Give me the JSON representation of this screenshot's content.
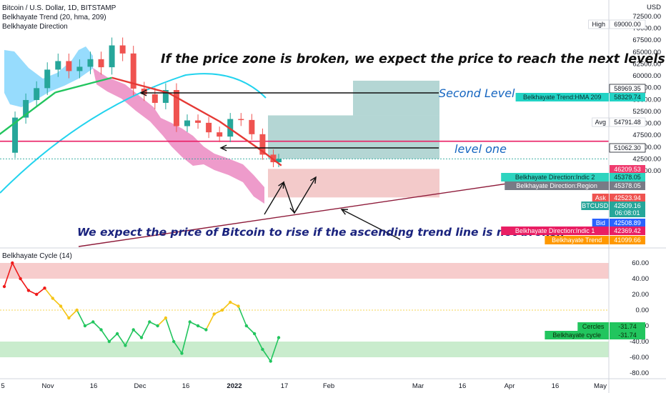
{
  "legend": {
    "symbol_line": "Bitcoin / U.S. Dollar, 1D, BITSTAMP",
    "trend_line": "Belkhayate Trend (20, hma, 209)",
    "direction_line": "Belkhayate Direction",
    "cycle_line": "Belkhayate Cycle  (14)"
  },
  "annotations": {
    "headline": "If the price zone is broken, we expect the price to reach the next levels",
    "second_level": "Second Level",
    "level_one": "level one",
    "bottom_note": "We expect the price of Bitcoin to rise if the ascending trend line is not broken"
  },
  "colors": {
    "up": "#26a69a",
    "down": "#ef5350",
    "trendline": "#8e1b3a",
    "resistance": "#e91e63",
    "arc": "#22d3ee",
    "cloud_pink": "#e879b9",
    "cloud_cyan": "#7dd3fc",
    "target_zone": "#a7cfcc",
    "stop_zone": "#f2c4c4",
    "cycle_yellow": "#f5c518",
    "cycle_green": "#22c55e",
    "cycle_red": "#ef1a1a",
    "band_red": "#f6c3c3",
    "band_green": "#bfe9c4"
  },
  "chart_data": [
    {
      "type": "line",
      "series": [
        {
          "name": "Bitcoin / U.S. Dollar",
          "x": [
            "2021-10-01",
            "2021-10-05",
            "2021-10-09",
            "2021-10-13",
            "2021-10-17",
            "2021-10-21",
            "2021-10-25",
            "2021-10-29",
            "2021-11-02",
            "2021-11-06",
            "2021-11-10",
            "2021-11-14",
            "2021-11-18",
            "2021-11-22",
            "2021-11-26",
            "2021-11-30",
            "2021-12-04",
            "2021-12-08",
            "2021-12-12",
            "2021-12-16",
            "2021-12-20",
            "2021-12-24",
            "2021-12-28",
            "2022-01-01",
            "2022-01-05",
            "2022-01-09",
            "2022-01-11"
          ],
          "values": [
            43800,
            51200,
            54900,
            57400,
            61300,
            63100,
            61000,
            61900,
            63500,
            61800,
            66400,
            64700,
            57300,
            56100,
            54300,
            57000,
            49400,
            50600,
            50100,
            48100,
            47200,
            50900,
            50700,
            47700,
            43400,
            41800,
            42509
          ]
        },
        {
          "name": "Belkhayate Trend",
          "x": [
            "2021-09-26",
            "2021-10-20",
            "2021-11-10",
            "2021-12-01",
            "2021-12-20",
            "2022-01-05",
            "2022-01-12"
          ],
          "values": [
            46300,
            56500,
            59600,
            56400,
            50400,
            44100,
            41099
          ]
        }
      ],
      "y_axis_labels": [
        "USD",
        "72500.00",
        "70000.00",
        "67500.00",
        "65000.00",
        "62500.00",
        "60000.00",
        "57500.00",
        "55000.00",
        "52500.00",
        "50000.00",
        "47500.00",
        "45000.00",
        "42500.00",
        "40000.00"
      ],
      "x_axis_labels": [
        "5",
        "Nov",
        "16",
        "Dec",
        "16",
        "2022",
        "17",
        "Feb",
        "Mar",
        "16",
        "Apr",
        "16",
        "May"
      ],
      "levels": {
        "second_level": 58969.35,
        "level_one": 51062.3,
        "resistance": 46209.53
      },
      "price_tags": [
        {
          "label": "High",
          "value": "69000.00",
          "bg": "#ffffff",
          "fg": "#131722",
          "border": "#d1d4dc"
        },
        {
          "label": "",
          "value": "58969.35",
          "bg": "#ffffff",
          "fg": "#131722",
          "border": "#131722"
        },
        {
          "label": "Belkhayate Trend:HMA 209",
          "value": "58329.74",
          "bg": "#22d3c5",
          "fg": "#0b2b2b",
          "border": ""
        },
        {
          "label": "Avg",
          "value": "54791.48",
          "bg": "#ffffff",
          "fg": "#131722",
          "border": "#d1d4dc"
        },
        {
          "label": "",
          "value": "51062.30",
          "bg": "#ffffff",
          "fg": "#131722",
          "border": "#131722"
        },
        {
          "label": "",
          "value": "46209.53",
          "bg": "#ef3b6e",
          "fg": "#ffffff",
          "border": ""
        },
        {
          "label": "Belkhayate Direction:Indic 2",
          "value": "45378.05",
          "bg": "#2dd4bf",
          "fg": "#0b2b2b",
          "border": ""
        },
        {
          "label": "Belkhayate Direction:Region",
          "value": "45378.05",
          "bg": "#787b86",
          "fg": "#ffffff",
          "border": ""
        },
        {
          "label": "Ask",
          "value": "42523.94",
          "bg": "#ef5350",
          "fg": "#ffffff",
          "border": ""
        },
        {
          "label": "BTCUSD",
          "value": "42509.16",
          "bg": "#26a69a",
          "fg": "#ffffff",
          "border": ""
        },
        {
          "label": "",
          "value": "06:08:01",
          "bg": "#26a69a",
          "fg": "#ffffff",
          "border": ""
        },
        {
          "label": "Bid",
          "value": "42508.89",
          "bg": "#2962ff",
          "fg": "#ffffff",
          "border": ""
        },
        {
          "label": "Belkhayate Direction:Indic 1",
          "value": "42369.42",
          "bg": "#e91e63",
          "fg": "#ffffff",
          "border": ""
        },
        {
          "label": "Belkhayate Trend",
          "value": "41099.66",
          "bg": "#ff9800",
          "fg": "#ffffff",
          "border": ""
        }
      ]
    },
    {
      "type": "scatter",
      "series": [
        {
          "name": "Belkhayate Cycle",
          "x": [
            "2021-10-01",
            "2021-10-04",
            "2021-10-07",
            "2021-10-10",
            "2021-10-13",
            "2021-10-16",
            "2021-10-19",
            "2021-10-22",
            "2021-10-25",
            "2021-10-28",
            "2021-10-31",
            "2021-11-03",
            "2021-11-06",
            "2021-11-09",
            "2021-11-12",
            "2021-11-15",
            "2021-11-18",
            "2021-11-21",
            "2021-11-24",
            "2021-11-27",
            "2021-11-30",
            "2021-12-03",
            "2021-12-06",
            "2021-12-09",
            "2021-12-12",
            "2021-12-15",
            "2021-12-18",
            "2021-12-21",
            "2021-12-24",
            "2021-12-27",
            "2021-12-30",
            "2022-01-02",
            "2022-01-05",
            "2022-01-08",
            "2022-01-11"
          ],
          "values": [
            30,
            60,
            40,
            25,
            20,
            28,
            15,
            5,
            -10,
            0,
            -20,
            -15,
            -25,
            -40,
            -30,
            -45,
            -25,
            -35,
            -15,
            -20,
            -10,
            -40,
            -55,
            -15,
            -20,
            -25,
            -5,
            0,
            10,
            5,
            -20,
            -30,
            -50,
            -65,
            -35
          ]
        }
      ],
      "y_axis_labels": [
        "60.00",
        "40.00",
        "20.00",
        "0.00",
        "-20.00",
        "-40.00",
        "-60.00",
        "-80.00"
      ],
      "bands": [
        {
          "from": 40,
          "to": 60,
          "color": "red"
        },
        {
          "from": -40,
          "to": -60,
          "color": "green"
        }
      ],
      "value_tags": [
        {
          "label": "Cercles",
          "value": "-31.74"
        },
        {
          "label": "Belkhayate cycle",
          "value": "-31.74"
        }
      ]
    }
  ]
}
